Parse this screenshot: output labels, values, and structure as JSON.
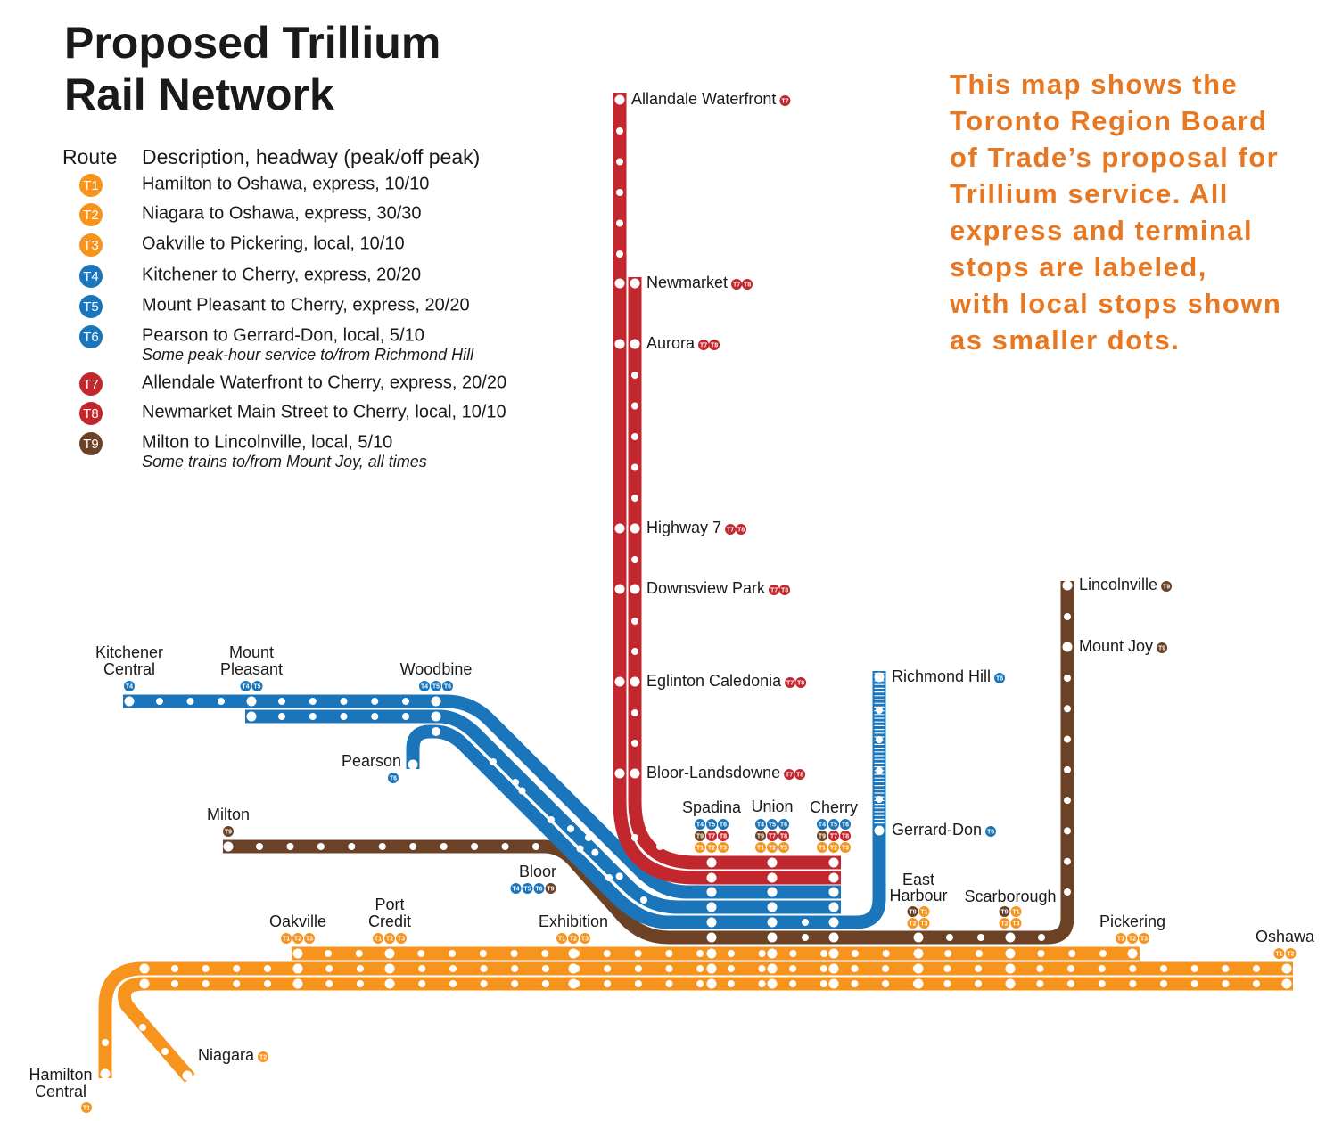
{
  "title": [
    "Proposed Trillium",
    "Rail Network"
  ],
  "legend": {
    "route_header": "Route",
    "description_header": "Description, headway (peak/off peak)",
    "routes": [
      {
        "id": "T1",
        "color": "#f7941d",
        "description": "Hamilton to Oshawa, express, 10/10"
      },
      {
        "id": "T2",
        "color": "#f7941d",
        "description": "Niagara to Oshawa, express, 30/30"
      },
      {
        "id": "T3",
        "color": "#f7941d",
        "description": "Oakville to Pickering, local, 10/10"
      },
      {
        "id": "T4",
        "color": "#1b75bb",
        "description": "Kitchener to Cherry, express, 20/20"
      },
      {
        "id": "T5",
        "color": "#1b75bb",
        "description": "Mount Pleasant to Cherry, express, 20/20"
      },
      {
        "id": "T6",
        "color": "#1b75bb",
        "description": "Pearson to Gerrard-Don, local, 5/10",
        "note": "Some peak-hour service to/from Richmond Hill"
      },
      {
        "id": "T7",
        "color": "#c1272d",
        "description": "Allendale Waterfront to Cherry, express, 20/20"
      },
      {
        "id": "T8",
        "color": "#c1272d",
        "description": "Newmarket Main Street to Cherry, local, 10/10"
      },
      {
        "id": "T9",
        "color": "#6b4226",
        "description": "Milton to Lincolnville, local, 5/10",
        "note": "Some trains to/from Mount Joy, all times"
      }
    ]
  },
  "intro": [
    "This map shows the",
    "Toronto Region Board",
    "of Trade’s proposal for",
    "Trillium service. All",
    "express and terminal",
    "stops are labeled,",
    "with local stops shown",
    "as smaller dots."
  ],
  "stations": [
    {
      "name": [
        "Allandale Waterfront"
      ],
      "routes": [
        "T7"
      ]
    },
    {
      "name": [
        "Newmarket"
      ],
      "routes": [
        "T7",
        "T8"
      ]
    },
    {
      "name": [
        "Aurora"
      ],
      "routes": [
        "T7",
        "T8"
      ]
    },
    {
      "name": [
        "Highway 7"
      ],
      "routes": [
        "T7",
        "T8"
      ]
    },
    {
      "name": [
        "Downsview Park"
      ],
      "routes": [
        "T7",
        "T8"
      ]
    },
    {
      "name": [
        "Eglinton Caledonia"
      ],
      "routes": [
        "T7",
        "T8"
      ]
    },
    {
      "name": [
        "Bloor-Landsdowne"
      ],
      "routes": [
        "T7",
        "T8"
      ]
    },
    {
      "name": [
        "Richmond Hill"
      ],
      "routes": [
        "T6"
      ]
    },
    {
      "name": [
        "Gerrard-Don"
      ],
      "routes": [
        "T6"
      ]
    },
    {
      "name": [
        "Lincolnville"
      ],
      "routes": [
        "T9"
      ]
    },
    {
      "name": [
        "Mount Joy"
      ],
      "routes": [
        "T9"
      ]
    },
    {
      "name": [
        "Kitchener",
        "Central"
      ],
      "routes": [
        "T4"
      ]
    },
    {
      "name": [
        "Mount",
        "Pleasant"
      ],
      "routes": [
        "T4",
        "T5"
      ]
    },
    {
      "name": [
        "Woodbine"
      ],
      "routes": [
        "T4",
        "T5",
        "T6"
      ]
    },
    {
      "name": [
        "Pearson"
      ],
      "routes": [
        "T6"
      ]
    },
    {
      "name": [
        "Milton"
      ],
      "routes": [
        "T9"
      ]
    },
    {
      "name": [
        "Bloor"
      ],
      "routes": [
        "T4",
        "T5",
        "T6",
        "T9"
      ]
    },
    {
      "name": [
        "Spadina"
      ],
      "routes": [
        "T4",
        "T5",
        "T6",
        "T9",
        "T7",
        "T8",
        "T1",
        "T2",
        "T3"
      ]
    },
    {
      "name": [
        "Union"
      ],
      "routes": [
        "T4",
        "T5",
        "T6",
        "T9",
        "T7",
        "T8",
        "T1",
        "T2",
        "T3"
      ]
    },
    {
      "name": [
        "Cherry"
      ],
      "routes": [
        "T4",
        "T5",
        "T6",
        "T9",
        "T7",
        "T8",
        "T1",
        "T2",
        "T3"
      ]
    },
    {
      "name": [
        "East",
        "Harbour"
      ],
      "routes": [
        "T9",
        "T1",
        "T2",
        "T3"
      ]
    },
    {
      "name": [
        "Scarborough"
      ],
      "routes": [
        "T9",
        "T1",
        "T2",
        "T3"
      ]
    },
    {
      "name": [
        "Pickering"
      ],
      "routes": [
        "T1",
        "T2",
        "T3"
      ]
    },
    {
      "name": [
        "Oshawa"
      ],
      "routes": [
        "T1",
        "T2"
      ]
    },
    {
      "name": [
        "Oakville"
      ],
      "routes": [
        "T1",
        "T2",
        "T3"
      ]
    },
    {
      "name": [
        "Port",
        "Credit"
      ],
      "routes": [
        "T1",
        "T2",
        "T3"
      ]
    },
    {
      "name": [
        "Exhibition"
      ],
      "routes": [
        "T1",
        "T2",
        "T3"
      ]
    },
    {
      "name": [
        "Niagara"
      ],
      "routes": [
        "T2"
      ]
    },
    {
      "name": [
        "Hamilton",
        "Central"
      ],
      "routes": [
        "T1"
      ]
    }
  ]
}
